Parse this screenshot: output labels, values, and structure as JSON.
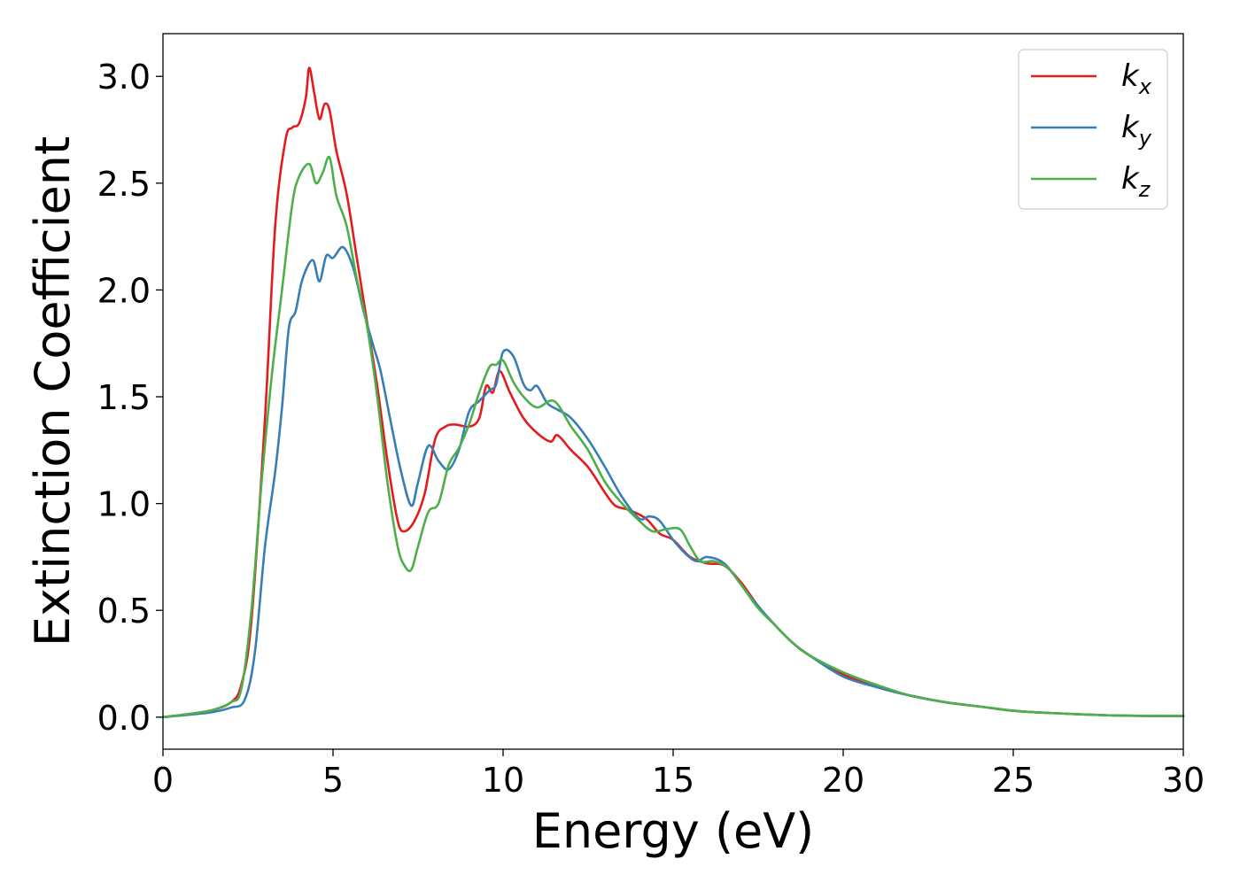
{
  "chart_data": {
    "type": "line",
    "xlabel": "Energy (eV)",
    "ylabel": "Extinction Coefficient",
    "xlim": [
      0,
      30
    ],
    "ylim": [
      -0.15,
      3.2
    ],
    "x_ticks": [
      "0",
      "5",
      "10",
      "15",
      "20",
      "25",
      "30"
    ],
    "y_ticks": [
      "0.0",
      "0.5",
      "1.0",
      "1.5",
      "2.0",
      "2.5",
      "3.0"
    ],
    "grid": false,
    "legend_position": "top-right",
    "series": [
      {
        "name": "k_x",
        "label_main": "k",
        "label_sub": "x",
        "color": "#e41a1c",
        "points": [
          [
            0,
            0
          ],
          [
            1,
            0.02
          ],
          [
            1.5,
            0.035
          ],
          [
            2,
            0.07
          ],
          [
            2.3,
            0.15
          ],
          [
            2.6,
            0.45
          ],
          [
            3,
            1.4
          ],
          [
            3.3,
            2.3
          ],
          [
            3.6,
            2.7
          ],
          [
            3.8,
            2.76
          ],
          [
            4,
            2.78
          ],
          [
            4.2,
            2.9
          ],
          [
            4.3,
            3.04
          ],
          [
            4.45,
            2.92
          ],
          [
            4.6,
            2.8
          ],
          [
            4.75,
            2.87
          ],
          [
            4.9,
            2.84
          ],
          [
            5.1,
            2.65
          ],
          [
            5.4,
            2.45
          ],
          [
            5.7,
            2.15
          ],
          [
            6,
            1.85
          ],
          [
            6.3,
            1.55
          ],
          [
            6.6,
            1.2
          ],
          [
            6.9,
            0.92
          ],
          [
            7.1,
            0.87
          ],
          [
            7.4,
            0.92
          ],
          [
            7.7,
            1.05
          ],
          [
            8,
            1.3
          ],
          [
            8.3,
            1.36
          ],
          [
            8.6,
            1.37
          ],
          [
            9,
            1.36
          ],
          [
            9.3,
            1.4
          ],
          [
            9.5,
            1.55
          ],
          [
            9.7,
            1.52
          ],
          [
            9.9,
            1.62
          ],
          [
            10.2,
            1.52
          ],
          [
            10.6,
            1.4
          ],
          [
            11,
            1.33
          ],
          [
            11.4,
            1.29
          ],
          [
            11.6,
            1.32
          ],
          [
            12,
            1.25
          ],
          [
            12.5,
            1.17
          ],
          [
            13,
            1.05
          ],
          [
            13.3,
            0.99
          ],
          [
            13.7,
            0.97
          ],
          [
            14.2,
            0.93
          ],
          [
            14.6,
            0.86
          ],
          [
            15,
            0.83
          ],
          [
            15.5,
            0.75
          ],
          [
            16,
            0.72
          ],
          [
            16.5,
            0.71
          ],
          [
            17,
            0.63
          ],
          [
            17.5,
            0.52
          ],
          [
            18,
            0.43
          ],
          [
            18.5,
            0.35
          ],
          [
            19,
            0.29
          ],
          [
            20,
            0.2
          ],
          [
            21,
            0.14
          ],
          [
            22,
            0.1
          ],
          [
            23,
            0.07
          ],
          [
            24,
            0.05
          ],
          [
            25,
            0.03
          ],
          [
            26,
            0.02
          ],
          [
            28,
            0.008
          ],
          [
            30,
            0.005
          ]
        ]
      },
      {
        "name": "k_y",
        "label_main": "k",
        "label_sub": "y",
        "color": "#377eb8",
        "points": [
          [
            0,
            0
          ],
          [
            1,
            0.015
          ],
          [
            1.5,
            0.025
          ],
          [
            2,
            0.045
          ],
          [
            2.4,
            0.08
          ],
          [
            2.7,
            0.3
          ],
          [
            3,
            0.8
          ],
          [
            3.3,
            1.15
          ],
          [
            3.5,
            1.45
          ],
          [
            3.7,
            1.82
          ],
          [
            3.9,
            1.9
          ],
          [
            4.1,
            2.05
          ],
          [
            4.4,
            2.14
          ],
          [
            4.6,
            2.04
          ],
          [
            4.8,
            2.16
          ],
          [
            5,
            2.15
          ],
          [
            5.3,
            2.2
          ],
          [
            5.6,
            2.1
          ],
          [
            5.9,
            1.9
          ],
          [
            6.2,
            1.73
          ],
          [
            6.4,
            1.62
          ],
          [
            6.7,
            1.38
          ],
          [
            7,
            1.15
          ],
          [
            7.3,
            0.99
          ],
          [
            7.5,
            1.1
          ],
          [
            7.8,
            1.27
          ],
          [
            8.1,
            1.2
          ],
          [
            8.4,
            1.16
          ],
          [
            8.7,
            1.25
          ],
          [
            9,
            1.43
          ],
          [
            9.3,
            1.48
          ],
          [
            9.6,
            1.53
          ],
          [
            9.8,
            1.56
          ],
          [
            10,
            1.71
          ],
          [
            10.3,
            1.69
          ],
          [
            10.6,
            1.56
          ],
          [
            10.8,
            1.53
          ],
          [
            11,
            1.55
          ],
          [
            11.3,
            1.47
          ],
          [
            11.6,
            1.44
          ],
          [
            12,
            1.4
          ],
          [
            12.5,
            1.3
          ],
          [
            13,
            1.17
          ],
          [
            13.5,
            1.03
          ],
          [
            14,
            0.93
          ],
          [
            14.3,
            0.94
          ],
          [
            14.6,
            0.92
          ],
          [
            15,
            0.83
          ],
          [
            15.4,
            0.76
          ],
          [
            15.7,
            0.73
          ],
          [
            16,
            0.75
          ],
          [
            16.5,
            0.72
          ],
          [
            17,
            0.62
          ],
          [
            17.5,
            0.52
          ],
          [
            18,
            0.43
          ],
          [
            18.5,
            0.35
          ],
          [
            19,
            0.29
          ],
          [
            20,
            0.19
          ],
          [
            21,
            0.14
          ],
          [
            22,
            0.1
          ],
          [
            23,
            0.07
          ],
          [
            24,
            0.05
          ],
          [
            25,
            0.03
          ],
          [
            26,
            0.02
          ],
          [
            28,
            0.008
          ],
          [
            30,
            0.005
          ]
        ]
      },
      {
        "name": "k_z",
        "label_main": "k",
        "label_sub": "z",
        "color": "#4daf4a",
        "points": [
          [
            0,
            0
          ],
          [
            1,
            0.02
          ],
          [
            1.5,
            0.035
          ],
          [
            2,
            0.07
          ],
          [
            2.3,
            0.13
          ],
          [
            2.6,
            0.5
          ],
          [
            2.9,
            1.1
          ],
          [
            3.2,
            1.6
          ],
          [
            3.5,
            2.0
          ],
          [
            3.8,
            2.4
          ],
          [
            4,
            2.53
          ],
          [
            4.3,
            2.59
          ],
          [
            4.5,
            2.5
          ],
          [
            4.7,
            2.55
          ],
          [
            4.9,
            2.62
          ],
          [
            5.1,
            2.44
          ],
          [
            5.4,
            2.3
          ],
          [
            5.7,
            2.05
          ],
          [
            6,
            1.83
          ],
          [
            6.3,
            1.5
          ],
          [
            6.6,
            1.1
          ],
          [
            6.9,
            0.8
          ],
          [
            7.1,
            0.71
          ],
          [
            7.3,
            0.69
          ],
          [
            7.5,
            0.8
          ],
          [
            7.8,
            0.96
          ],
          [
            8.1,
            1.0
          ],
          [
            8.4,
            1.18
          ],
          [
            8.7,
            1.26
          ],
          [
            9,
            1.37
          ],
          [
            9.3,
            1.52
          ],
          [
            9.6,
            1.64
          ],
          [
            9.8,
            1.65
          ],
          [
            10,
            1.67
          ],
          [
            10.3,
            1.57
          ],
          [
            10.6,
            1.5
          ],
          [
            11,
            1.45
          ],
          [
            11.5,
            1.48
          ],
          [
            12,
            1.36
          ],
          [
            12.5,
            1.25
          ],
          [
            13,
            1.1
          ],
          [
            13.5,
            1.0
          ],
          [
            14,
            0.92
          ],
          [
            14.4,
            0.87
          ],
          [
            14.8,
            0.88
          ],
          [
            15.2,
            0.88
          ],
          [
            15.5,
            0.8
          ],
          [
            15.8,
            0.73
          ],
          [
            16.2,
            0.73
          ],
          [
            16.6,
            0.7
          ],
          [
            17,
            0.62
          ],
          [
            17.5,
            0.51
          ],
          [
            18,
            0.43
          ],
          [
            18.5,
            0.35
          ],
          [
            19,
            0.29
          ],
          [
            20,
            0.21
          ],
          [
            21,
            0.15
          ],
          [
            22,
            0.1
          ],
          [
            23,
            0.07
          ],
          [
            24,
            0.05
          ],
          [
            25,
            0.03
          ],
          [
            26,
            0.02
          ],
          [
            28,
            0.008
          ],
          [
            30,
            0.005
          ]
        ]
      }
    ]
  }
}
